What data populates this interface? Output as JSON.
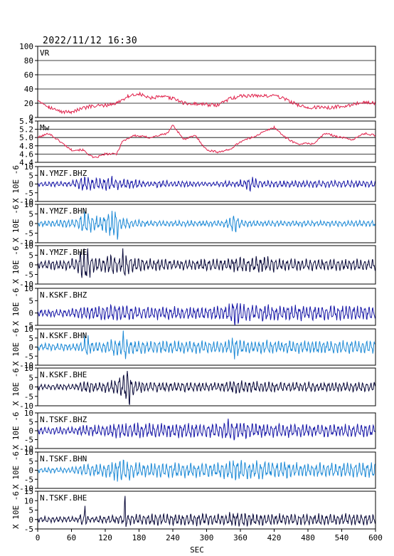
{
  "title": "2022/11/12 16:30",
  "chart_data": {
    "type": "line",
    "title": "2022/11/12 16:30",
    "xlabel": "SEC",
    "x_ticks": [
      0,
      60,
      120,
      180,
      240,
      300,
      360,
      420,
      480,
      540,
      600
    ],
    "xlim": [
      0,
      600
    ],
    "panels": [
      {
        "label": "VR",
        "ylabel": "",
        "color": "#e0204a",
        "ylim": [
          0,
          100
        ],
        "y_ticks": [
          "0",
          "20",
          "40",
          "60",
          "80",
          "100"
        ],
        "grid": true,
        "points": [
          [
            0,
            25
          ],
          [
            20,
            15
          ],
          [
            40,
            8
          ],
          [
            60,
            8
          ],
          [
            90,
            15
          ],
          [
            120,
            17
          ],
          [
            140,
            20
          ],
          [
            160,
            30
          ],
          [
            180,
            33
          ],
          [
            200,
            27
          ],
          [
            220,
            29
          ],
          [
            240,
            27
          ],
          [
            260,
            20
          ],
          [
            280,
            19
          ],
          [
            300,
            18
          ],
          [
            320,
            17
          ],
          [
            340,
            26
          ],
          [
            360,
            30
          ],
          [
            380,
            31
          ],
          [
            400,
            30
          ],
          [
            420,
            31
          ],
          [
            440,
            26
          ],
          [
            460,
            18
          ],
          [
            480,
            14
          ],
          [
            520,
            14
          ],
          [
            560,
            18
          ],
          [
            580,
            22
          ],
          [
            600,
            20
          ]
        ]
      },
      {
        "label": "Mw",
        "ylabel": "",
        "color": "#e0204a",
        "ylim": [
          4.4,
          5.4
        ],
        "y_ticks": [
          "4.4",
          "4.6",
          "4.8",
          "5.0",
          "5.2",
          "5.4"
        ],
        "grid": true,
        "points": [
          [
            0,
            5.0
          ],
          [
            20,
            5.1
          ],
          [
            40,
            4.9
          ],
          [
            60,
            4.7
          ],
          [
            80,
            4.7
          ],
          [
            100,
            4.5
          ],
          [
            120,
            4.6
          ],
          [
            140,
            4.6
          ],
          [
            150,
            4.9
          ],
          [
            170,
            5.05
          ],
          [
            200,
            5.0
          ],
          [
            230,
            5.1
          ],
          [
            240,
            5.3
          ],
          [
            260,
            4.95
          ],
          [
            280,
            5.05
          ],
          [
            300,
            4.7
          ],
          [
            320,
            4.65
          ],
          [
            340,
            4.7
          ],
          [
            360,
            4.9
          ],
          [
            380,
            5.0
          ],
          [
            420,
            5.25
          ],
          [
            440,
            5.0
          ],
          [
            460,
            4.85
          ],
          [
            490,
            4.85
          ],
          [
            510,
            5.1
          ],
          [
            540,
            5.0
          ],
          [
            560,
            4.95
          ],
          [
            580,
            5.1
          ],
          [
            600,
            5.05
          ]
        ]
      },
      {
        "label": "N.YMZF.BHZ",
        "ylabel": "X 10E -6",
        "color": "#1a1aa8",
        "ylim": [
          -10,
          10
        ],
        "y_ticks": [
          "-10",
          "-5",
          "0",
          "5",
          "10"
        ],
        "grid": false,
        "envelope": [
          1.2,
          1.2,
          1.5,
          1.5,
          1.5,
          1.5,
          1.5,
          1.5,
          2.0,
          3.0,
          4.0,
          4.5,
          3.5,
          3.5,
          3.5,
          3.5,
          4.0,
          4.5,
          3.0,
          2.5,
          3.0,
          2.5,
          2.5,
          2.5,
          2.0,
          1.5,
          1.5,
          1.5,
          2.0,
          2.0,
          2.0,
          1.5,
          1.5,
          2.0,
          2.0,
          2.0,
          1.5,
          1.5,
          1.2,
          1.2,
          1.2,
          1.2,
          1.5,
          1.5,
          2.0,
          1.5,
          1.5,
          1.5,
          2.5,
          3.5,
          5.0,
          3.0,
          2.5,
          2.0,
          2.0,
          2.0,
          2.0,
          2.0,
          2.0,
          2.0,
          2.0,
          2.0,
          2.0,
          2.0,
          2.0,
          2.0,
          2.0,
          2.0,
          2.0,
          2.0,
          2.0,
          2.0,
          2.0,
          2.0,
          2.0,
          2.0,
          2.0,
          2.0,
          2.0,
          2.0,
          2.0
        ]
      },
      {
        "label": "N.YMZF.BHN",
        "ylabel": "X 10E -6",
        "color": "#1e8ad6",
        "ylim": [
          -10,
          10
        ],
        "y_ticks": [
          "-10",
          "-5",
          "0",
          "5",
          "10"
        ],
        "grid": false,
        "envelope": [
          1.5,
          1.5,
          1.5,
          1.5,
          2.0,
          2.0,
          2.0,
          2.0,
          2.0,
          2.5,
          5.0,
          7.0,
          5.0,
          4.0,
          3.0,
          5.0,
          6.0,
          7.0,
          8.0,
          3.0,
          3.0,
          2.5,
          2.0,
          2.0,
          2.0,
          1.5,
          1.5,
          1.5,
          1.5,
          1.5,
          1.5,
          1.5,
          1.5,
          1.5,
          1.5,
          1.5,
          1.5,
          1.5,
          1.5,
          1.5,
          1.5,
          1.5,
          1.5,
          1.5,
          2.0,
          3.0,
          5.0,
          3.0,
          2.0,
          1.5,
          1.5,
          1.5,
          1.5,
          1.5,
          1.5,
          1.5,
          1.5,
          1.5,
          1.5,
          1.5,
          1.5,
          1.5,
          1.5,
          1.5,
          1.5,
          1.5,
          1.5,
          1.5,
          1.5,
          1.5,
          1.5,
          1.5,
          1.5,
          1.5,
          1.5,
          1.5,
          1.5,
          1.5,
          1.5,
          1.5,
          1.5
        ]
      },
      {
        "label": "N.YMZF.BHE",
        "ylabel": "X 10E -6",
        "color": "#0a0a3a",
        "ylim": [
          -10,
          10
        ],
        "y_ticks": [
          "-10",
          "-5",
          "0",
          "5",
          "10"
        ],
        "grid": false,
        "envelope": [
          2.0,
          2.0,
          2.5,
          2.5,
          2.5,
          2.5,
          2.5,
          2.5,
          3.0,
          4.0,
          8.0,
          9.0,
          6.0,
          4.0,
          4.0,
          4.0,
          5.0,
          6.0,
          4.0,
          4.0,
          8.0,
          5.0,
          4.0,
          4.0,
          3.5,
          3.0,
          3.0,
          3.0,
          3.0,
          3.0,
          3.0,
          2.5,
          2.5,
          2.5,
          2.5,
          2.5,
          2.5,
          2.5,
          3.0,
          3.0,
          3.0,
          3.0,
          3.0,
          3.0,
          3.0,
          3.5,
          4.0,
          4.0,
          4.0,
          4.0,
          4.0,
          4.0,
          4.0,
          4.0,
          4.0,
          4.0,
          3.0,
          3.0,
          3.0,
          3.0,
          3.0,
          3.0,
          3.0,
          3.0,
          3.0,
          3.0,
          3.0,
          3.0,
          3.0,
          3.0,
          3.0,
          3.0,
          3.0,
          3.0,
          3.0,
          3.0,
          3.0,
          3.0,
          3.0,
          3.0,
          3.0
        ]
      },
      {
        "label": "N.KSKF.BHZ",
        "ylabel": "X 10E -6",
        "color": "#1a1aa8",
        "ylim": [
          -5,
          10
        ],
        "y_ticks": [
          "-5",
          "0",
          "5",
          "10"
        ],
        "grid": false,
        "envelope": [
          1.5,
          1.5,
          1.5,
          1.5,
          1.5,
          1.5,
          1.5,
          1.5,
          2.0,
          2.0,
          2.5,
          2.5,
          2.5,
          2.5,
          2.5,
          3.0,
          3.0,
          3.5,
          3.5,
          3.5,
          3.0,
          3.0,
          2.5,
          2.5,
          2.5,
          2.5,
          2.5,
          2.5,
          2.5,
          2.5,
          2.5,
          2.5,
          2.5,
          2.5,
          2.5,
          2.5,
          2.5,
          2.5,
          2.5,
          2.5,
          2.5,
          2.5,
          3.0,
          3.0,
          3.0,
          3.5,
          6.0,
          5.0,
          4.0,
          3.5,
          3.0,
          3.0,
          3.0,
          3.0,
          3.0,
          3.0,
          3.0,
          3.0,
          3.0,
          3.0,
          3.0,
          3.0,
          3.0,
          3.0,
          3.0,
          3.0,
          3.0,
          3.0,
          3.0,
          3.0,
          3.0,
          3.0,
          3.0,
          3.0,
          3.0,
          3.0,
          3.0,
          3.0,
          3.0,
          3.0,
          3.0
        ]
      },
      {
        "label": "N.KSKF.BHN",
        "ylabel": "X 10E -6",
        "color": "#1e8ad6",
        "ylim": [
          -10,
          10
        ],
        "y_ticks": [
          "-10",
          "-5",
          "0",
          "5",
          "10"
        ],
        "grid": false,
        "envelope": [
          2.0,
          2.0,
          2.0,
          2.0,
          2.0,
          2.0,
          2.0,
          2.0,
          2.0,
          2.5,
          3.0,
          6.0,
          4.0,
          3.0,
          3.0,
          3.0,
          3.5,
          4.0,
          5.0,
          4.0,
          9.0,
          5.0,
          4.0,
          3.5,
          3.5,
          3.5,
          3.5,
          3.5,
          3.5,
          3.5,
          3.5,
          3.5,
          3.5,
          3.5,
          3.5,
          3.5,
          3.5,
          3.5,
          3.5,
          3.5,
          3.5,
          3.5,
          3.5,
          3.5,
          3.5,
          4.0,
          6.0,
          5.0,
          4.0,
          3.5,
          3.5,
          3.5,
          3.5,
          3.5,
          3.5,
          3.5,
          3.5,
          3.5,
          3.5,
          3.5,
          3.5,
          3.5,
          3.5,
          3.5,
          3.5,
          3.5,
          3.5,
          3.5,
          3.5,
          3.5,
          3.5,
          3.5,
          3.5,
          3.5,
          3.5,
          3.5,
          3.5,
          3.5,
          3.5,
          3.5,
          3.5
        ]
      },
      {
        "label": "N.KSKF.BHE",
        "ylabel": "X 10E -6",
        "color": "#0a0a3a",
        "ylim": [
          -10,
          10
        ],
        "y_ticks": [
          "-10",
          "-5",
          "0",
          "5",
          "10"
        ],
        "grid": false,
        "envelope": [
          1.5,
          1.5,
          1.5,
          1.5,
          1.5,
          1.5,
          1.5,
          1.5,
          1.5,
          2.0,
          3.0,
          3.0,
          3.0,
          2.5,
          2.5,
          3.0,
          3.0,
          3.5,
          4.0,
          6.0,
          8.0,
          10.0,
          5.0,
          3.5,
          3.0,
          2.5,
          2.5,
          2.5,
          2.5,
          2.5,
          2.5,
          2.5,
          2.5,
          2.5,
          2.5,
          2.5,
          2.5,
          2.5,
          2.5,
          2.5,
          2.5,
          2.5,
          2.5,
          2.5,
          2.5,
          3.0,
          4.0,
          3.5,
          3.0,
          3.0,
          3.0,
          3.0,
          3.0,
          3.0,
          3.0,
          3.0,
          2.5,
          2.5,
          2.5,
          2.5,
          2.5,
          2.5,
          2.5,
          2.5,
          2.5,
          2.5,
          2.5,
          2.5,
          2.5,
          2.5,
          2.5,
          2.5,
          2.5,
          2.5,
          2.5,
          2.5,
          2.5,
          2.5,
          2.5,
          2.5,
          2.5
        ]
      },
      {
        "label": "N.TSKF.BHZ",
        "ylabel": "X 10E -6",
        "color": "#1a1aa8",
        "ylim": [
          -10,
          10
        ],
        "y_ticks": [
          "-10",
          "-5",
          "0",
          "5",
          "10"
        ],
        "grid": false,
        "envelope": [
          2.0,
          2.0,
          2.0,
          2.0,
          2.0,
          2.0,
          2.0,
          2.0,
          2.0,
          2.5,
          3.0,
          3.0,
          3.0,
          3.0,
          3.0,
          3.0,
          3.5,
          3.5,
          4.5,
          4.0,
          4.0,
          4.0,
          4.0,
          4.0,
          4.0,
          4.0,
          4.0,
          4.0,
          4.0,
          4.0,
          4.0,
          4.0,
          4.0,
          4.0,
          4.0,
          4.0,
          4.0,
          4.0,
          4.0,
          4.0,
          4.0,
          4.0,
          4.0,
          4.0,
          5.0,
          6.0,
          6.0,
          5.0,
          5.0,
          5.0,
          4.0,
          4.0,
          4.0,
          4.0,
          4.0,
          4.0,
          4.0,
          4.0,
          4.0,
          4.0,
          3.5,
          3.5,
          3.5,
          3.5,
          3.5,
          3.5,
          3.5,
          3.5,
          3.5,
          3.5,
          3.5,
          3.5,
          3.5,
          3.5,
          3.5,
          3.5,
          3.5,
          3.5,
          3.5,
          3.5,
          3.5
        ]
      },
      {
        "label": "N.TSKF.BHN",
        "ylabel": "X 10E -6",
        "color": "#1e8ad6",
        "ylim": [
          -10,
          10
        ],
        "y_ticks": [
          "-10",
          "-5",
          "0",
          "5",
          "10"
        ],
        "grid": false,
        "envelope": [
          1.5,
          1.5,
          1.5,
          1.5,
          1.5,
          1.5,
          1.5,
          1.5,
          2.0,
          2.5,
          3.0,
          3.5,
          3.5,
          3.5,
          3.5,
          3.5,
          4.0,
          5.0,
          6.0,
          6.0,
          6.0,
          5.0,
          4.0,
          4.0,
          4.0,
          4.0,
          4.0,
          4.0,
          4.0,
          4.0,
          4.0,
          4.0,
          4.0,
          4.0,
          4.0,
          4.0,
          4.0,
          4.0,
          4.0,
          4.0,
          4.0,
          4.0,
          4.0,
          4.0,
          4.5,
          6.0,
          6.0,
          6.0,
          6.0,
          5.0,
          5.0,
          5.0,
          5.0,
          5.0,
          4.5,
          4.5,
          4.5,
          4.5,
          4.5,
          4.5,
          4.0,
          4.0,
          4.0,
          4.0,
          4.0,
          4.0,
          4.0,
          4.0,
          4.0,
          4.0,
          4.0,
          4.0,
          4.0,
          4.0,
          4.0,
          4.0,
          4.0,
          4.0,
          4.0,
          4.0,
          4.0
        ]
      },
      {
        "label": "N.TSKF.BHE",
        "ylabel": "X 10E -6",
        "color": "#0a0a3a",
        "ylim": [
          -5,
          15
        ],
        "y_ticks": [
          "-5",
          "0",
          "5",
          "10",
          "15"
        ],
        "grid": false,
        "envelope": [
          1.5,
          1.5,
          1.5,
          1.5,
          1.5,
          1.5,
          1.5,
          1.5,
          1.5,
          1.5,
          3.5,
          2.0,
          1.5,
          1.5,
          2.0,
          2.0,
          2.0,
          2.0,
          2.0,
          2.5,
          3.0,
          3.0,
          3.0,
          3.0,
          3.0,
          3.0,
          3.0,
          3.0,
          3.0,
          3.0,
          3.0,
          3.0,
          3.0,
          3.0,
          3.0,
          3.0,
          3.0,
          3.0,
          3.0,
          3.0,
          3.0,
          3.0,
          3.0,
          3.0,
          3.0,
          3.5,
          4.0,
          4.0,
          4.0,
          3.5,
          3.5,
          3.5,
          3.0,
          3.0,
          3.0,
          3.0,
          3.0,
          3.0,
          3.0,
          3.0,
          3.0,
          3.0,
          3.0,
          3.0,
          3.0,
          3.0,
          3.0,
          3.0,
          3.0,
          3.0,
          3.0,
          3.0,
          3.0,
          3.0,
          3.0,
          3.0,
          3.0,
          3.0,
          3.0,
          3.0,
          3.0
        ],
        "spikes": [
          [
            84,
            8
          ],
          [
            155,
            14
          ]
        ]
      }
    ]
  }
}
